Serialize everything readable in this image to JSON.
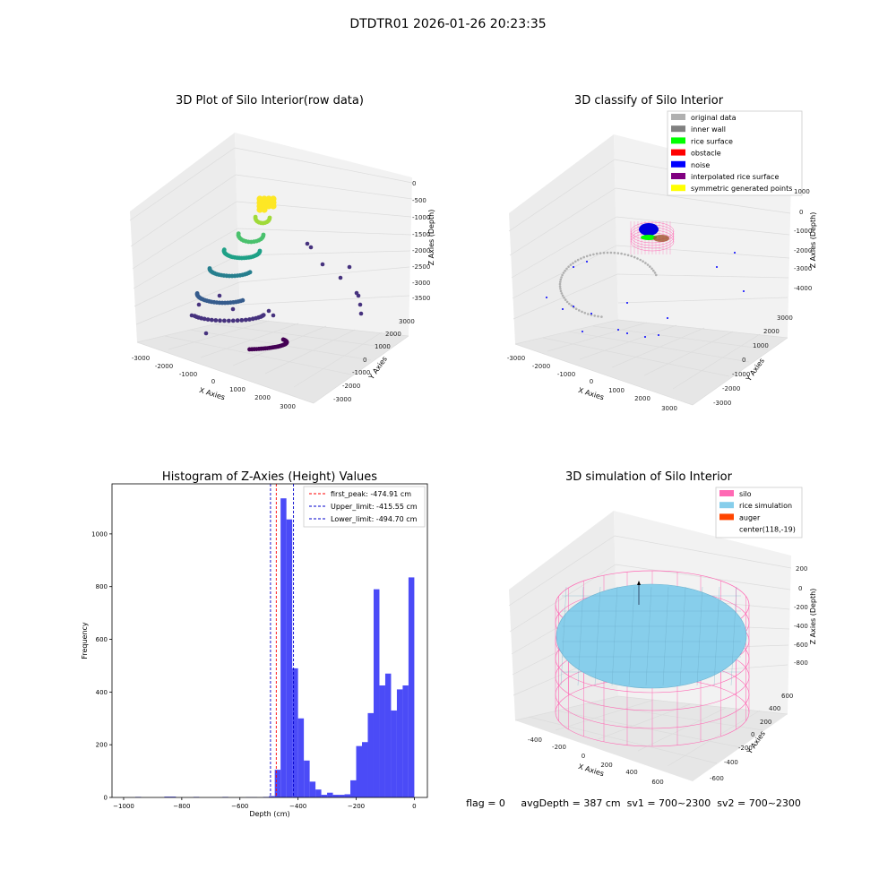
{
  "suptitle": "DTDTR01 2026-01-26 20:23:35",
  "colors": {
    "hist_bar": "#4b4bf7",
    "peak_line": "#ff0000",
    "limit_line": "#0000cc",
    "pane": "#f2f2f2",
    "silo": "#ff69b4",
    "rice": "#87ceeb",
    "auger": "#ff4500"
  },
  "chart_data": [
    {
      "type": "scatter",
      "projection": "3d",
      "title": "3D Plot of Silo Interior(row data)",
      "xlabel": "X Axies",
      "ylabel": "Y Axies",
      "zlabel": "Z Axies (Depth)",
      "xticks": [
        "-3000",
        "-2000",
        "-1000",
        "0",
        "1000",
        "2000",
        "3000"
      ],
      "yticks": [
        "-3000",
        "-2000",
        "-1000",
        "0",
        "1000",
        "2000",
        "3000"
      ],
      "zticks": [
        "0",
        "-500",
        "-1000",
        "-1500",
        "-2000",
        "-2500",
        "-3000",
        "-3500"
      ],
      "colormap": "viridis (by depth)",
      "grid": true
    },
    {
      "type": "scatter",
      "projection": "3d",
      "title": "3D classify of Silo Interior",
      "xlabel": "X Axies",
      "ylabel": "Y Axies",
      "zlabel": "Z Axies (Depth)",
      "xticks": [
        "-3000",
        "-2000",
        "-1000",
        "0",
        "1000",
        "2000",
        "3000"
      ],
      "yticks": [
        "-3000",
        "-2000",
        "-1000",
        "0",
        "1000",
        "2000",
        "3000"
      ],
      "zticks": [
        "1000",
        "0",
        "-1000",
        "-2000",
        "-3000",
        "-4000"
      ],
      "legend_position": "top-right",
      "legend": [
        {
          "label": "original data",
          "color": "#b0b0b0"
        },
        {
          "label": "inner wall",
          "color": "#808080"
        },
        {
          "label": "rice surface",
          "color": "#00ff00"
        },
        {
          "label": "obstacle",
          "color": "#ff0000"
        },
        {
          "label": "noise",
          "color": "#0000ff"
        },
        {
          "label": "interpolated rice surface",
          "color": "#800080"
        },
        {
          "label": "symmetric generated points",
          "color": "#ffff00"
        }
      ],
      "grid": true
    },
    {
      "type": "bar",
      "title": "Histogram of Z-Axies (Height) Values",
      "xlabel": "Depth (cm)",
      "ylabel": "Frequency",
      "xlim": [
        -1040,
        45
      ],
      "ylim": [
        0,
        1190
      ],
      "xticks": [
        -1000,
        -800,
        -600,
        -400,
        -200,
        0
      ],
      "yticks": [
        0,
        200,
        400,
        600,
        800,
        1000
      ],
      "bin_width": 20,
      "bins": [
        {
          "start": -1000,
          "value": 2
        },
        {
          "start": -900,
          "value": 3
        },
        {
          "start": -880,
          "value": 3
        },
        {
          "start": -800,
          "value": 2
        },
        {
          "start": -700,
          "value": 2
        },
        {
          "start": -620,
          "value": 1
        },
        {
          "start": -600,
          "value": 1
        },
        {
          "start": -560,
          "value": 2
        },
        {
          "start": -540,
          "value": 5
        },
        {
          "start": -520,
          "value": 105
        },
        {
          "start": -500,
          "value": 1135
        },
        {
          "start": -480,
          "value": 1055
        },
        {
          "start": -460,
          "value": 490
        },
        {
          "start": -440,
          "value": 300
        },
        {
          "start": -420,
          "value": 140
        },
        {
          "start": -400,
          "value": 60
        },
        {
          "start": -380,
          "value": 30
        },
        {
          "start": -360,
          "value": 10
        },
        {
          "start": -340,
          "value": 18
        },
        {
          "start": -320,
          "value": 10
        },
        {
          "start": -300,
          "value": 10
        },
        {
          "start": -280,
          "value": 12
        },
        {
          "start": -260,
          "value": 65
        },
        {
          "start": -240,
          "value": 195
        },
        {
          "start": -220,
          "value": 210
        },
        {
          "start": -200,
          "value": 320
        },
        {
          "start": -180,
          "value": 790
        },
        {
          "start": -160,
          "value": 425
        },
        {
          "start": -140,
          "value": 470
        },
        {
          "start": -120,
          "value": 330
        },
        {
          "start": -100,
          "value": 410
        },
        {
          "start": -80,
          "value": 425
        },
        {
          "start": -60,
          "value": 835
        }
      ],
      "bin_offset": 40,
      "vlines": [
        {
          "x": -474.91,
          "label": "first_peak: -474.91 cm",
          "color": "#ff0000"
        },
        {
          "x": -415.55,
          "label": "Upper_limit: -415.55 cm",
          "color": "#0000cc"
        },
        {
          "x": -494.7,
          "label": "Lower_limit: -494.70 cm",
          "color": "#0000cc"
        }
      ],
      "legend_position": "top-right"
    },
    {
      "type": "surface",
      "projection": "3d",
      "title": "3D simulation of Silo Interior",
      "xlabel": "X Axies",
      "ylabel": "Y Axies",
      "zlabel": "Z Axies (Depth)",
      "xticks": [
        "-400",
        "-200",
        "0",
        "200",
        "400",
        "600"
      ],
      "yticks": [
        "-600",
        "-400",
        "-200",
        "0",
        "200",
        "400",
        "600"
      ],
      "zticks": [
        "200",
        "0",
        "-200",
        "-400",
        "-600",
        "-800"
      ],
      "legend_position": "top-right",
      "legend": [
        {
          "label": "silo",
          "color": "#ff69b4"
        },
        {
          "label": "rice simulation",
          "color": "#87ceeb"
        },
        {
          "label": "auger",
          "color": "#ff4500"
        },
        {
          "label": "center(118,-19)",
          "color": ""
        }
      ],
      "footer": "flag = 0     avgDepth = 387 cm  sv1 = 700~2300  sv2 = 700~2300"
    }
  ]
}
